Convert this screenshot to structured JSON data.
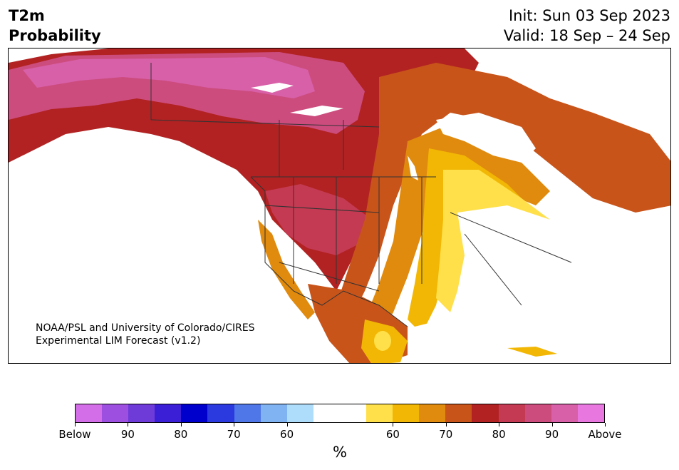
{
  "header": {
    "title_line1": "T2m",
    "title_line2": "Probability",
    "init": "Init: Sun 03 Sep 2023",
    "valid": "Valid: 18 Sep – 24 Sep"
  },
  "map": {
    "credit_line1": "NOAA/PSL and University of Colorado/CIRES",
    "credit_line2": "Experimental LIM Forecast (v1.2)",
    "colors": {
      "above_50": "#ffffff",
      "above_55": "#ffe04a",
      "above_60": "#f2b705",
      "above_65": "#e08a0e",
      "above_70": "#c8541a",
      "above_75": "#b22222",
      "above_80": "#c43a52",
      "above_85": "#cc4c7e",
      "above_90": "#d860a8",
      "borders": "#333333",
      "water": "#ffffff"
    }
  },
  "colorbar": {
    "label": "%",
    "segments": [
      "#d46ee8",
      "#9d50e0",
      "#6e3ad8",
      "#3a1fd6",
      "#0000cc",
      "#2a3ade",
      "#5077e8",
      "#7fb3f2",
      "#aedcfb",
      "#ffffff",
      "#ffffff",
      "#ffe04a",
      "#f2b705",
      "#e08a0e",
      "#c8541a",
      "#b22222",
      "#c43a52",
      "#cc4c7e",
      "#d860a8",
      "#e878e0"
    ],
    "ticks": [
      "Below",
      "90",
      "80",
      "70",
      "60",
      "60",
      "70",
      "80",
      "90",
      "Above"
    ]
  }
}
